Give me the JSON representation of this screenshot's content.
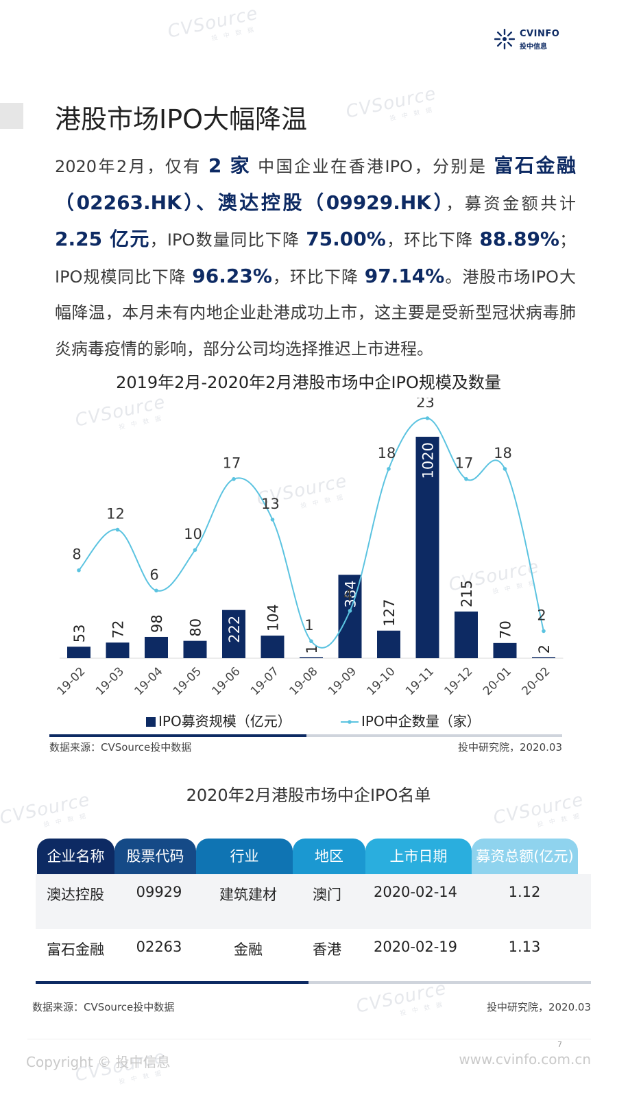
{
  "brand": {
    "logo_en": "CVINFO",
    "logo_cn": "投中信息",
    "watermark_en": "CVSource",
    "watermark_cn": "投 中 数 据",
    "color_navy": "#0d2a63",
    "color_line": "#5bc3e0"
  },
  "page": {
    "title": "港股市场IPO大幅降温",
    "number": "7"
  },
  "paragraph": {
    "p1": "2020年2月，仅有 ",
    "h1": "2 家",
    "p2": " 中国企业在香港IPO，分别是 ",
    "h2": "富石金融（02263.HK）、澳达控股（09929.HK）",
    "p3": "，募资金额共计 ",
    "h3": "2.25 亿元",
    "p4": "，IPO数量同比下降 ",
    "h4": "75.00%",
    "p5": "，环比下降 ",
    "h5": "88.89%",
    "p6": "；IPO规模同比下降 ",
    "h6": "96.23%",
    "p7": "，环比下降 ",
    "h7": "97.14%",
    "p8": "。港股市场IPO大幅降温，本月未有内地企业赴港成功上市，这主要是受新型冠状病毒肺炎病毒疫情的影响，部分公司均选择推迟上市进程。"
  },
  "chart_data": {
    "type": "bar",
    "title": "2019年2月-2020年2月港股市场中企IPO规模及数量",
    "categories": [
      "19-02",
      "19-03",
      "19-04",
      "19-05",
      "19-06",
      "19-07",
      "19-08",
      "19-09",
      "19-10",
      "19-11",
      "19-12",
      "20-01",
      "20-02"
    ],
    "series": [
      {
        "name": "IPO募资规模（亿元）",
        "type": "bar",
        "axis": "left",
        "color": "#0d2a63",
        "values": [
          53,
          72,
          98,
          80,
          222,
          104,
          1,
          384,
          127,
          1020,
          215,
          70,
          2
        ]
      },
      {
        "name": "IPO中企数量（家）",
        "type": "line",
        "axis": "right",
        "color": "#5bc3e0",
        "values": [
          8,
          12,
          6,
          10,
          17,
          13,
          1,
          4,
          18,
          23,
          17,
          18,
          2
        ]
      }
    ],
    "ylim_left": [
      0,
      1020
    ],
    "ylim_right": [
      0,
      23
    ],
    "grid": false,
    "legend": "bottom"
  },
  "chart_source": {
    "left": "数据来源：CVSource投中数据",
    "right": "投中研究院，2020.03"
  },
  "table": {
    "title": "2020年2月港股市场中企IPO名单",
    "headers": [
      "企业名称",
      "股票代码",
      "行业",
      "地区",
      "上市日期",
      "募资总额(亿元)"
    ],
    "header_colors": [
      "#0d2a63",
      "#154a87",
      "#0f74b3",
      "#1b98d1",
      "#2aaede",
      "#8fd3ee"
    ],
    "rows": [
      [
        "澳达控股",
        "09929",
        "建筑建材",
        "澳门",
        "2020-02-14",
        "1.12"
      ],
      [
        "富石金融",
        "02263",
        "金融",
        "香港",
        "2020-02-19",
        "1.13"
      ]
    ],
    "source_left": "数据来源：CVSource投中数据",
    "source_right": "投中研究院，2020.03"
  },
  "footer": {
    "copyright": "Copyright © 投中信息",
    "site": "www.cvinfo.com.cn"
  }
}
